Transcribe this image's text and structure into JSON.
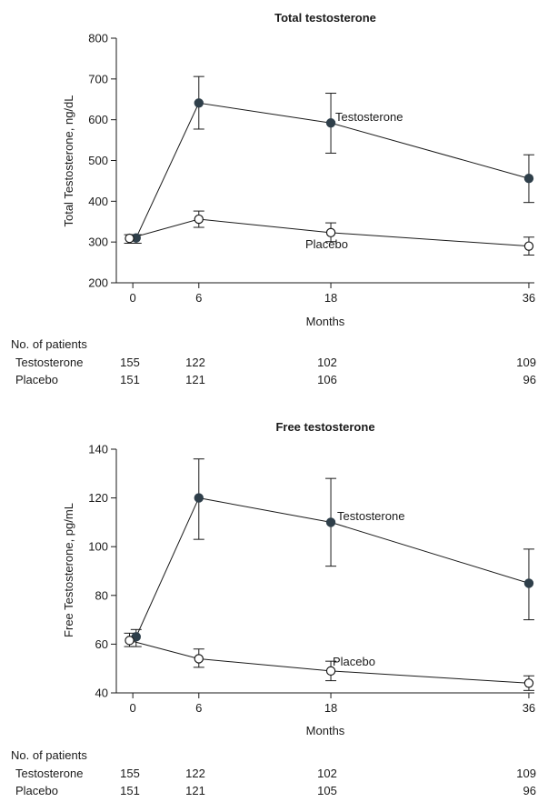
{
  "chart_data": [
    {
      "type": "line",
      "title": "Total testosterone",
      "xlabel": "Months",
      "ylabel": "Total Testosterone, ng/dL",
      "ylim": [
        200,
        800
      ],
      "yticks": [
        200,
        300,
        400,
        500,
        600,
        700,
        800
      ],
      "xlim": [
        -1.5,
        36.5
      ],
      "xticks": [
        0,
        6,
        18,
        36
      ],
      "series": [
        {
          "name": "Testosterone",
          "marker": "filled",
          "color": "#2f3f4a",
          "points": [
            {
              "x": 0.3,
              "y": 310,
              "lo": 297,
              "hi": 318
            },
            {
              "x": 6,
              "y": 641,
              "lo": 577,
              "hi": 706
            },
            {
              "x": 18,
              "y": 592,
              "lo": 518,
              "hi": 665
            },
            {
              "x": 36,
              "y": 456,
              "lo": 397,
              "hi": 514
            }
          ]
        },
        {
          "name": "Placebo",
          "marker": "open",
          "color": "#2f3f4a",
          "points": [
            {
              "x": -0.3,
              "y": 309,
              "lo": 297,
              "hi": 318
            },
            {
              "x": 6,
              "y": 356,
              "lo": 336,
              "hi": 376
            },
            {
              "x": 18,
              "y": 323,
              "lo": 301,
              "hi": 347
            },
            {
              "x": 36,
              "y": 290,
              "lo": 268,
              "hi": 312
            }
          ]
        }
      ],
      "patients": {
        "header": "No. of patients",
        "rows": [
          {
            "label": "Testosterone",
            "values": [
              "155",
              "122",
              "102",
              "109"
            ]
          },
          {
            "label": "Placebo",
            "values": [
              "151",
              "121",
              "106",
              "96"
            ]
          }
        ]
      }
    },
    {
      "type": "line",
      "title": "Free testosterone",
      "xlabel": "Months",
      "ylabel": "Free Testosterone, pg/mL",
      "ylim": [
        40,
        140
      ],
      "yticks": [
        40,
        60,
        80,
        100,
        120,
        140
      ],
      "xlim": [
        -1.5,
        36.5
      ],
      "xticks": [
        0,
        6,
        18,
        36
      ],
      "series": [
        {
          "name": "Testosterone",
          "marker": "filled",
          "color": "#2f3f4a",
          "points": [
            {
              "x": 0.3,
              "y": 63,
              "lo": 59,
              "hi": 66
            },
            {
              "x": 6,
              "y": 120,
              "lo": 103,
              "hi": 136
            },
            {
              "x": 18,
              "y": 110,
              "lo": 92,
              "hi": 128
            },
            {
              "x": 36,
              "y": 85,
              "lo": 70,
              "hi": 99
            }
          ]
        },
        {
          "name": "Placebo",
          "marker": "open",
          "color": "#2f3f4a",
          "points": [
            {
              "x": -0.3,
              "y": 61.5,
              "lo": 59,
              "hi": 64.5
            },
            {
              "x": 6,
              "y": 54,
              "lo": 50.5,
              "hi": 58
            },
            {
              "x": 18,
              "y": 49,
              "lo": 45,
              "hi": 53
            },
            {
              "x": 36,
              "y": 44,
              "lo": 41,
              "hi": 47
            }
          ]
        }
      ],
      "patients": {
        "header": "No. of patients",
        "rows": [
          {
            "label": "Testosterone",
            "values": [
              "155",
              "122",
              "102",
              "109"
            ]
          },
          {
            "label": "Placebo",
            "values": [
              "151",
              "121",
              "105",
              "96"
            ]
          }
        ]
      }
    }
  ]
}
